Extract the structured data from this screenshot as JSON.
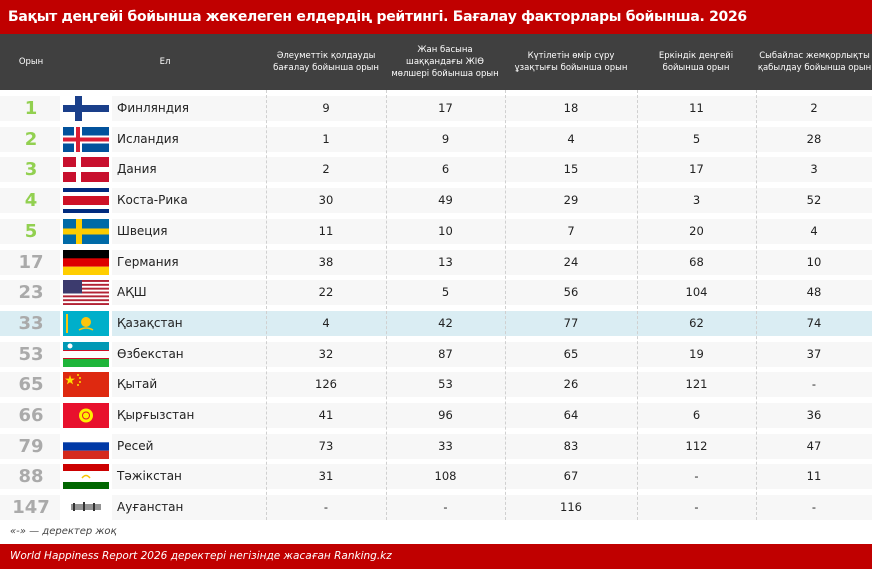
{
  "title": "Бақыт деңгейі бойынша жекелеген елдердің рейтингі. Бағалау факторлары бойынша. 2026",
  "headers": [
    "Орын",
    "Ел",
    "Әлеуметтік қолдауды бағалау бойынша орын",
    "Жан басына шаққандағы ЖІӨ мөлшері бойынша орын",
    "Күтілетін өмір сүру ұзақтығы бойынша орын",
    "Еркіндік деңгейі бойынша орын",
    "Сыбайлас жемқорлықты қабылдау бойынша орын"
  ],
  "colors": {
    "accent": "#c00000",
    "header_bg": "#404040",
    "top_rank": "#92d050",
    "other_rank": "#aaaaaa",
    "highlight": "#daedf3"
  },
  "rows": [
    {
      "rank": "1",
      "flag": "finland",
      "country": "Финляндия",
      "values": [
        "9",
        "17",
        "18",
        "11",
        "2"
      ]
    },
    {
      "rank": "2",
      "flag": "iceland",
      "country": "Исландия",
      "values": [
        "1",
        "9",
        "4",
        "5",
        "28"
      ]
    },
    {
      "rank": "3",
      "flag": "denmark",
      "country": "Дания",
      "values": [
        "2",
        "6",
        "15",
        "17",
        "3"
      ]
    },
    {
      "rank": "4",
      "flag": "costa-rica",
      "country": "Коста-Рика",
      "values": [
        "30",
        "49",
        "29",
        "3",
        "52"
      ]
    },
    {
      "rank": "5",
      "flag": "sweden",
      "country": "Швеция",
      "values": [
        "11",
        "10",
        "7",
        "20",
        "4"
      ]
    },
    {
      "rank": "17",
      "flag": "germany",
      "country": "Германия",
      "values": [
        "38",
        "13",
        "24",
        "68",
        "10"
      ]
    },
    {
      "rank": "23",
      "flag": "usa",
      "country": "АҚШ",
      "values": [
        "22",
        "5",
        "56",
        "104",
        "48"
      ]
    },
    {
      "rank": "33",
      "flag": "kazakhstan",
      "country": "Қазақстан",
      "values": [
        "4",
        "42",
        "77",
        "62",
        "74"
      ],
      "highlight": true
    },
    {
      "rank": "53",
      "flag": "uzbekistan",
      "country": "Өзбекстан",
      "values": [
        "32",
        "87",
        "65",
        "19",
        "37"
      ]
    },
    {
      "rank": "65",
      "flag": "china",
      "country": "Қытай",
      "values": [
        "126",
        "53",
        "26",
        "121",
        "-"
      ]
    },
    {
      "rank": "66",
      "flag": "kyrgyzstan",
      "country": "Қырғызстан",
      "values": [
        "41",
        "96",
        "64",
        "6",
        "36"
      ]
    },
    {
      "rank": "79",
      "flag": "russia",
      "country": "Ресей",
      "values": [
        "73",
        "33",
        "83",
        "112",
        "47"
      ]
    },
    {
      "rank": "88",
      "flag": "tajikistan",
      "country": "Тәжікстан",
      "values": [
        "31",
        "108",
        "67",
        "-",
        "11"
      ]
    },
    {
      "rank": "147",
      "flag": "afghanistan",
      "country": "Ауғанстан",
      "values": [
        "-",
        "-",
        "116",
        "-",
        "-"
      ]
    }
  ],
  "note": "«-» — деректер жоқ",
  "footer": "World Happiness Report 2026 деректері негізінде жасаған Ranking.kz"
}
